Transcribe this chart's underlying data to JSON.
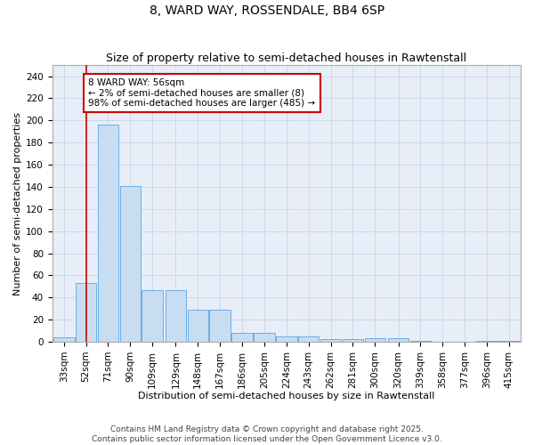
{
  "title": "8, WARD WAY, ROSSENDALE, BB4 6SP",
  "subtitle": "Size of property relative to semi-detached houses in Rawtenstall",
  "xlabel": "Distribution of semi-detached houses by size in Rawtenstall",
  "ylabel": "Number of semi-detached properties",
  "bar_color": "#c8ddf2",
  "bar_edge_color": "#6aaee8",
  "grid_color": "#c8d4e8",
  "background_color": "#e8eef8",
  "annotation_box_color": "#cc0000",
  "annotation_text": "8 WARD WAY: 56sqm\n← 2% of semi-detached houses are smaller (8)\n98% of semi-detached houses are larger (485) →",
  "vline_color": "#cc0000",
  "categories": [
    "33sqm",
    "52sqm",
    "71sqm",
    "90sqm",
    "109sqm",
    "129sqm",
    "148sqm",
    "167sqm",
    "186sqm",
    "205sqm",
    "224sqm",
    "243sqm",
    "262sqm",
    "281sqm",
    "300sqm",
    "320sqm",
    "339sqm",
    "358sqm",
    "377sqm",
    "396sqm",
    "415sqm"
  ],
  "bin_centers": [
    33,
    52,
    71,
    90,
    109,
    129,
    148,
    167,
    186,
    205,
    224,
    243,
    262,
    281,
    300,
    320,
    339,
    358,
    377,
    396,
    415
  ],
  "bin_width": 18,
  "values": [
    4,
    53,
    196,
    141,
    47,
    47,
    29,
    29,
    8,
    8,
    5,
    5,
    2,
    2,
    3,
    3,
    1,
    0,
    0,
    1,
    1
  ],
  "vline_x_idx": 1,
  "ylim": [
    0,
    250
  ],
  "yticks": [
    0,
    20,
    40,
    60,
    80,
    100,
    120,
    140,
    160,
    180,
    200,
    220,
    240
  ],
  "footnote": "Contains HM Land Registry data © Crown copyright and database right 2025.\nContains public sector information licensed under the Open Government Licence v3.0.",
  "title_fontsize": 10,
  "subtitle_fontsize": 9,
  "axis_label_fontsize": 8,
  "tick_fontsize": 7.5,
  "annotation_fontsize": 7.5,
  "footnote_fontsize": 6.5
}
